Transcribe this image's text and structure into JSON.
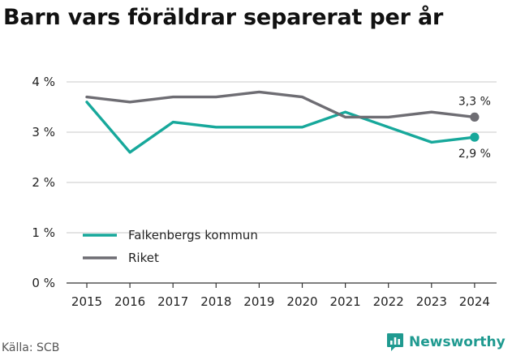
{
  "header": {
    "title": "Barn vars föräldrar separerat per år"
  },
  "footer": {
    "source": "Källa: SCB",
    "brand": "Newsworthy",
    "brand_icon": "bar-chart-speech-bubble-icon"
  },
  "colors": {
    "falkenberg": "#17a89b",
    "riket": "#6e6d73",
    "grid": "#d4d4d4",
    "axis": "#333333"
  },
  "chart_data": {
    "type": "line",
    "title": "Barn vars föräldrar separerat per år",
    "x": [
      2015,
      2016,
      2017,
      2018,
      2019,
      2020,
      2021,
      2022,
      2023,
      2024
    ],
    "x_tick_labels": [
      "2015",
      "2016",
      "2017",
      "2018",
      "2019",
      "2020",
      "2021",
      "2022",
      "2023",
      "2024"
    ],
    "ylim": [
      0,
      4
    ],
    "y_ticks": [
      0,
      1,
      2,
      3,
      4
    ],
    "y_tick_labels": [
      "0 %",
      "1 %",
      "2 %",
      "3 %",
      "4 %"
    ],
    "grid": true,
    "legend_position": "bottom-left",
    "series": [
      {
        "name": "Falkenbergs kommun",
        "color_key": "falkenberg",
        "values": [
          3.6,
          2.6,
          3.2,
          3.1,
          3.1,
          3.1,
          3.4,
          3.1,
          2.8,
          2.9
        ],
        "end_label": "2,9 %"
      },
      {
        "name": "Riket",
        "color_key": "riket",
        "values": [
          3.7,
          3.6,
          3.7,
          3.7,
          3.8,
          3.7,
          3.3,
          3.3,
          3.4,
          3.3
        ],
        "end_label": "3,3 %"
      }
    ]
  }
}
